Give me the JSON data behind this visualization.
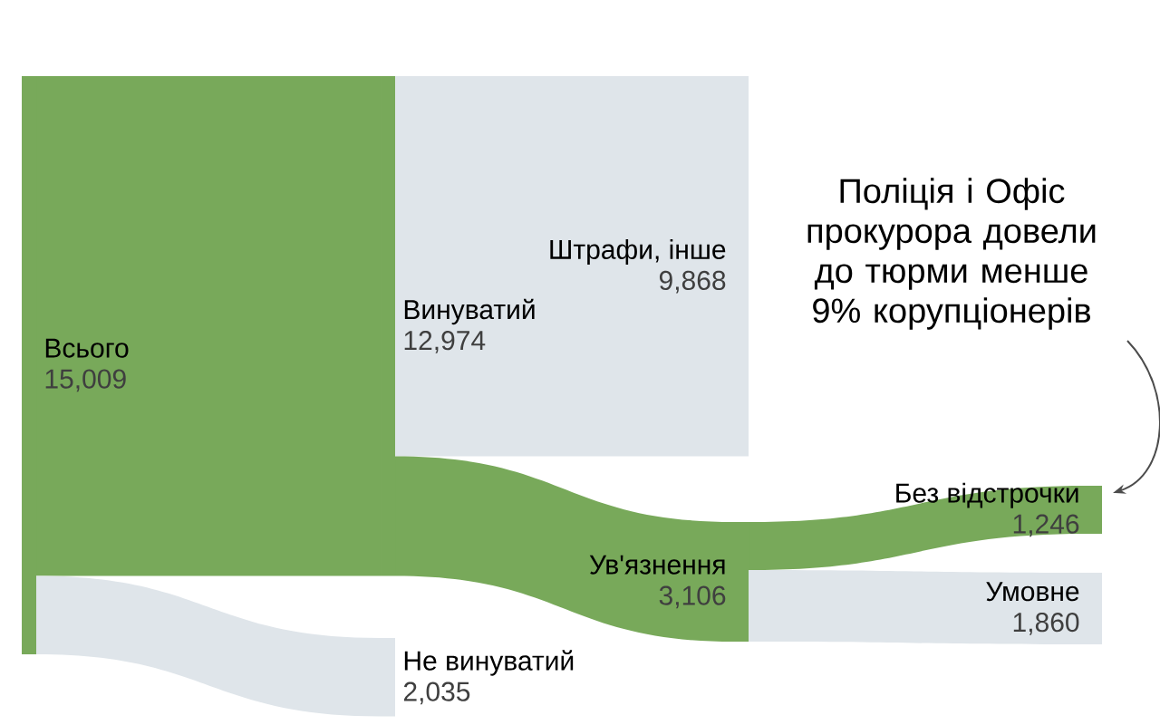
{
  "chart_data": {
    "type": "other",
    "categories": [
      "Всього",
      "Винуватий",
      "Не винуватий",
      "Штрафи, інше",
      "Ув'язнення",
      "Без відстрочки",
      "Умовне"
    ],
    "values": [
      15009,
      12974,
      2035,
      9868,
      3106,
      1246,
      1860
    ],
    "value_labels": [
      "15,009",
      "12,974",
      "2,035",
      "9,868",
      "3,106",
      "1,246",
      "1,860"
    ],
    "annotations": [
      "Поліція і Офіс прокурора довели до тюрми менше 9% корупціонерів"
    ]
  }
}
